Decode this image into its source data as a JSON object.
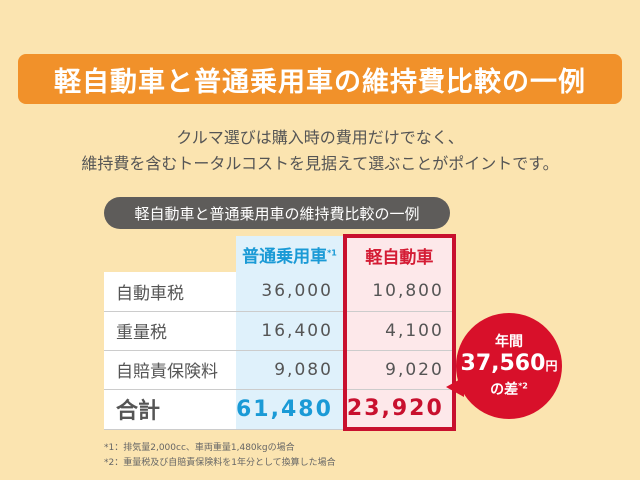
{
  "title": "軽自動車と普通乗用車の維持費比較の一例",
  "intro": [
    "クルマ選びは購入時の費用だけでなく、",
    "維持費を含むトータルコストを見据えて選ぶことがポイントです。"
  ],
  "table": {
    "caption": "軽自動車と普通乗用車の維持費比較の一例",
    "headers": [
      "普通乗用車",
      "軽自動車"
    ],
    "header_note": "*1",
    "rows": [
      {
        "label": "自動車税",
        "normal": "36,000",
        "kei": "10,800"
      },
      {
        "label": "重量税",
        "normal": "16,400",
        "kei": "4,100"
      },
      {
        "label": "自賠責保険料",
        "normal": "9,080",
        "kei": "9,020"
      },
      {
        "label": "合計",
        "normal": "61,480",
        "kei": "23,920"
      }
    ]
  },
  "bubble": {
    "line1": "年間",
    "amount": "37,560",
    "unit": "円",
    "line3": "の差",
    "note": "*2"
  },
  "footnotes": [
    "*1：排気量2,000cc、車両重量1,480kgの場合",
    "*2：重量税及び自賠責保険料を1年分として換算した場合"
  ],
  "colors": {
    "orange": "#f1912a",
    "red": "#c8102e",
    "blue": "#1a9ad6"
  }
}
